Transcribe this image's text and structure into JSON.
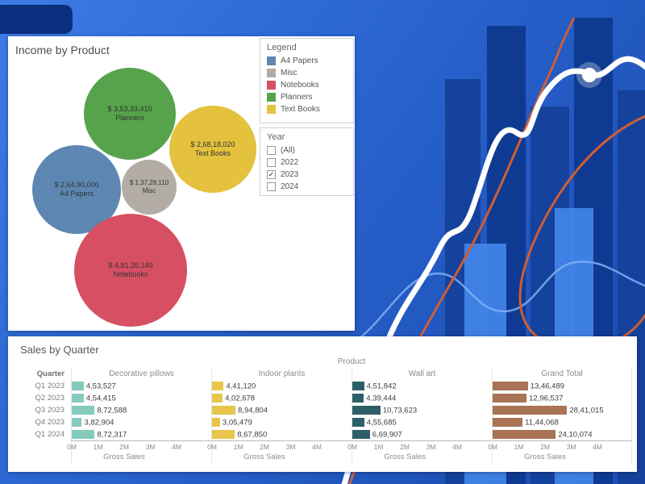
{
  "legend_title": "Legend",
  "year_filter": {
    "title": "Year",
    "options": [
      {
        "label": "(All)",
        "checked": false
      },
      {
        "label": "2022",
        "checked": false
      },
      {
        "label": "2023",
        "checked": true
      },
      {
        "label": "2024",
        "checked": false
      }
    ]
  },
  "theme": {
    "curve_white": "#ffffff",
    "curve_orange": "#cd5f35",
    "curve_lightblue": "#7fb0f2",
    "bar_navy": "#15429c",
    "bar_dark_navy": "#0f3a92",
    "bar_bright": "#4487ec",
    "chip_navy": "#0b2f7e"
  },
  "chart_data": [
    {
      "type": "bubble",
      "title": "Income by Product",
      "series": [
        {
          "name": "A4 Papers",
          "label": "$ 2,64,90,000",
          "value": 26490000,
          "color": "#5d87b2"
        },
        {
          "name": "Misc",
          "label": "$ 1,37,28,110",
          "value": 13728110,
          "color": "#b3aca4"
        },
        {
          "name": "Notebooks",
          "label": "$ 4,81,35,140",
          "value": 48135140,
          "color": "#d64f63"
        },
        {
          "name": "Planners",
          "label": "$ 3,53,33,410",
          "value": 35333410,
          "color": "#56a34c"
        },
        {
          "name": "Text Books",
          "label": "$ 2,68,18,020",
          "value": 26818020,
          "color": "#e4c23d"
        }
      ],
      "legend_position": "top-right",
      "filter_field": "Year",
      "filter_selected": "2023"
    },
    {
      "type": "bar",
      "orientation": "horizontal",
      "title": "Sales by Quarter",
      "column_header": "Product",
      "row_header": "Quarter",
      "categories": [
        "Q1 2023",
        "Q2 2023",
        "Q3 2023",
        "Q4 2023",
        "Q1 2024"
      ],
      "series": [
        {
          "name": "Decorative pillows",
          "color": "#85cbbd",
          "values": [
            453527,
            454415,
            872588,
            382904,
            872317
          ],
          "labels": [
            "4,53,527",
            "4,54,415",
            "8,72,588",
            "3,82,904",
            "8,72,317"
          ]
        },
        {
          "name": "Indoor plants",
          "color": "#e7c64b",
          "values": [
            441120,
            402678,
            894804,
            305479,
            867850
          ],
          "labels": [
            "4,41,120",
            "4,02,678",
            "8,94,804",
            "3,05,479",
            "8,67,850"
          ]
        },
        {
          "name": "Wall art",
          "color": "#2d5f68",
          "values": [
            451842,
            439444,
            1073623,
            455685,
            669907
          ],
          "labels": [
            "4,51,842",
            "4,39,444",
            "10,73,623",
            "4,55,685",
            "6,69,907"
          ]
        },
        {
          "name": "Grand Total",
          "color": "#a97455",
          "values": [
            1346489,
            1296537,
            2841015,
            1144068,
            2410074
          ],
          "labels": [
            "13,46,489",
            "12,96,537",
            "28,41,015",
            "11,44,068",
            "24,10,074"
          ]
        }
      ],
      "xlabel": "Gross Sales",
      "xlim": [
        0,
        4000000
      ],
      "x_ticks": [
        "0M",
        "1M",
        "2M",
        "3M",
        "4M"
      ],
      "grid": false,
      "legend_position": "none"
    }
  ]
}
